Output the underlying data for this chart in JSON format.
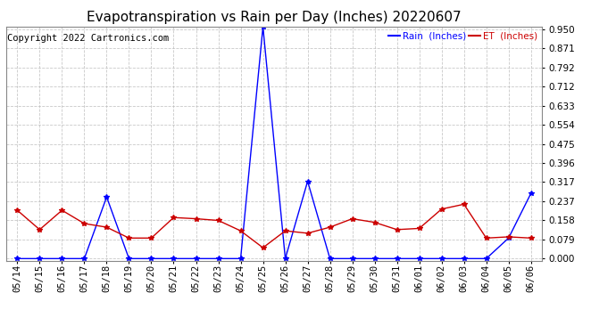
{
  "title": "Evapotranspiration vs Rain per Day (Inches) 20220607",
  "copyright": "Copyright 2022 Cartronics.com",
  "legend_rain": "Rain  (Inches)",
  "legend_et": "ET  (Inches)",
  "x_labels": [
    "05/14",
    "05/15",
    "05/16",
    "05/17",
    "05/18",
    "05/19",
    "05/20",
    "05/21",
    "05/22",
    "05/23",
    "05/24",
    "05/25",
    "05/26",
    "05/27",
    "05/28",
    "05/29",
    "05/30",
    "05/31",
    "06/01",
    "06/02",
    "06/03",
    "06/04",
    "06/05",
    "06/06"
  ],
  "rain_values": [
    0.0,
    0.0,
    0.0,
    0.0,
    0.255,
    0.0,
    0.0,
    0.0,
    0.0,
    0.0,
    0.0,
    0.96,
    0.0,
    0.32,
    0.0,
    0.0,
    0.0,
    0.0,
    0.0,
    0.0,
    0.0,
    0.0,
    0.085,
    0.27
  ],
  "et_values": [
    0.2,
    0.12,
    0.2,
    0.145,
    0.13,
    0.085,
    0.085,
    0.17,
    0.165,
    0.158,
    0.115,
    0.045,
    0.115,
    0.105,
    0.13,
    0.165,
    0.15,
    0.12,
    0.125,
    0.205,
    0.225,
    0.085,
    0.09,
    0.085
  ],
  "rain_color": "#0000ff",
  "et_color": "#cc0000",
  "ylim_min": -0.008,
  "ylim_max": 0.96,
  "yticks": [
    0.0,
    0.079,
    0.158,
    0.237,
    0.317,
    0.396,
    0.475,
    0.554,
    0.633,
    0.712,
    0.792,
    0.871,
    0.95
  ],
  "background_color": "#ffffff",
  "grid_color": "#bbbbbb",
  "title_fontsize": 11,
  "axis_fontsize": 7.5,
  "copyright_fontsize": 7.5
}
